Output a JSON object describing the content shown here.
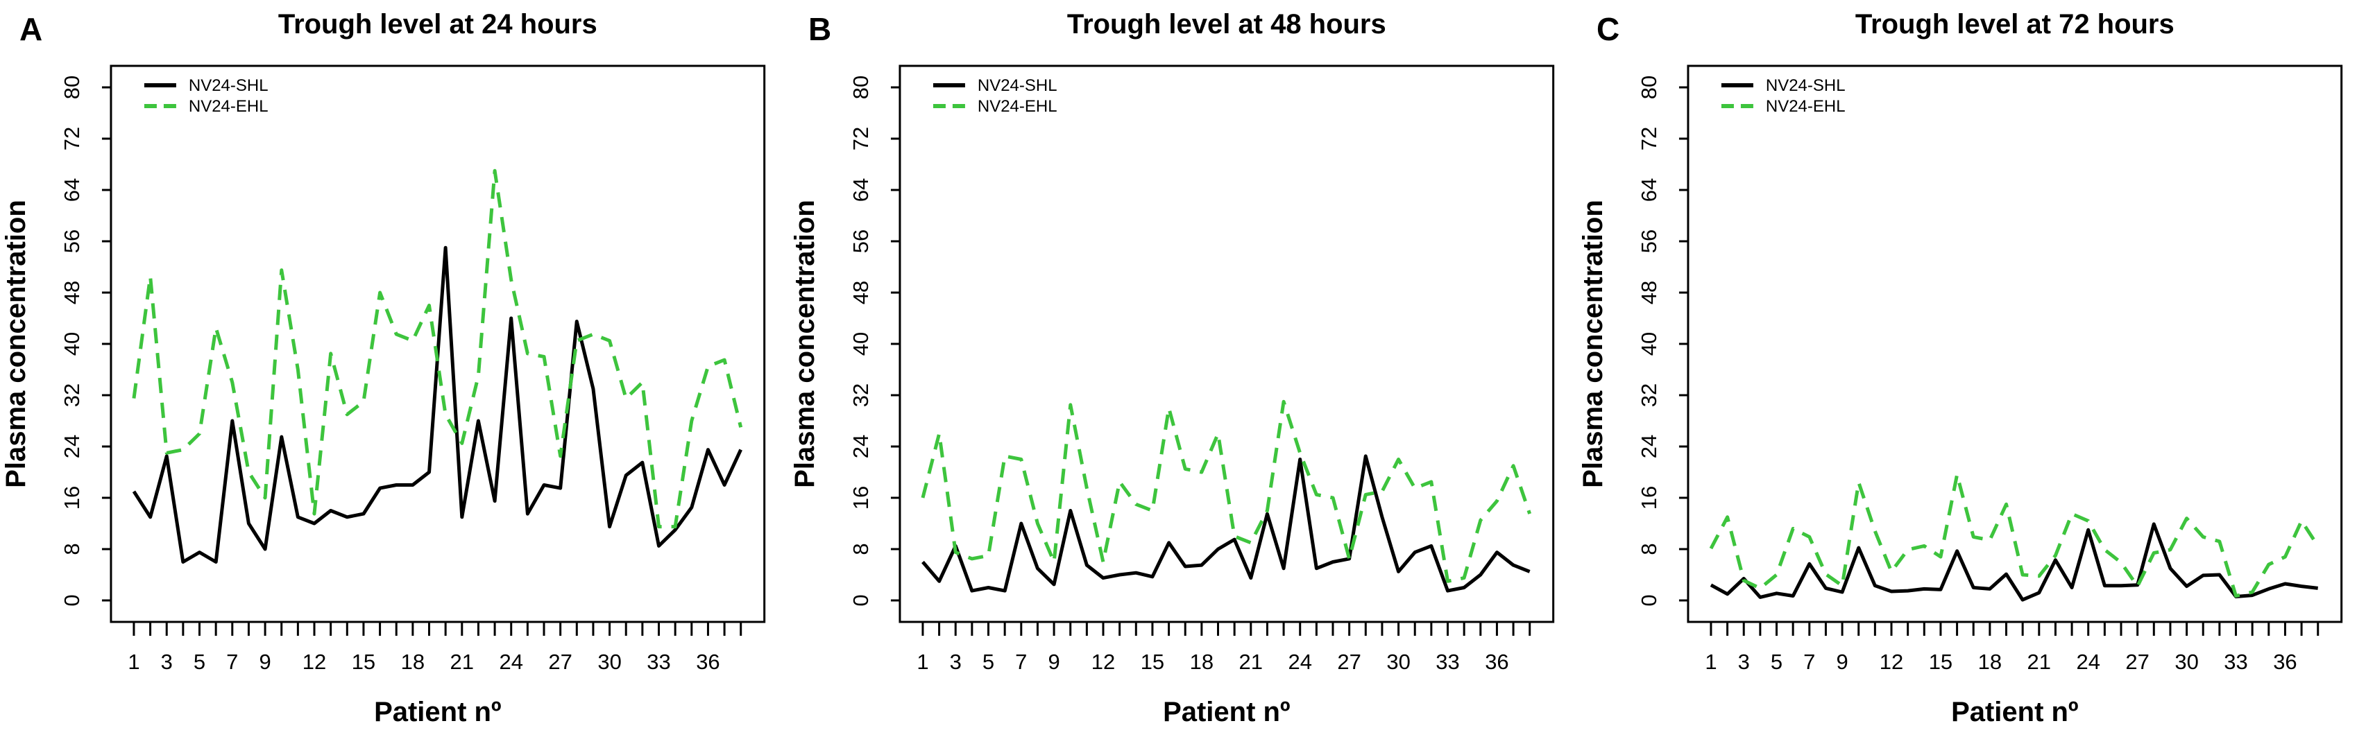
{
  "figure": {
    "background": "#ffffff",
    "frame_color": "#000000",
    "accent_green": "#3dc43d",
    "series_black": "#000000"
  },
  "chart_data": [
    {
      "type": "line",
      "panel_label": "A",
      "title": "Trough level at 24 hours",
      "xlabel": "Patient nº",
      "ylabel": "Plasma concentration",
      "x": [
        1,
        2,
        3,
        4,
        5,
        6,
        7,
        8,
        9,
        10,
        11,
        12,
        13,
        14,
        15,
        16,
        17,
        18,
        19,
        20,
        21,
        22,
        23,
        24,
        25,
        26,
        27,
        28,
        29,
        30,
        31,
        32,
        33,
        34,
        35,
        36,
        37,
        38
      ],
      "xtick_labels": [
        1,
        3,
        5,
        7,
        9,
        12,
        15,
        18,
        21,
        24,
        27,
        30,
        33,
        36
      ],
      "yticks": [
        0,
        8,
        16,
        24,
        32,
        40,
        48,
        56,
        64,
        72,
        80
      ],
      "ylim": [
        0,
        80
      ],
      "grid": false,
      "legend_position": "top-left",
      "series": [
        {
          "name": "NV24-SHL",
          "color": "#000000",
          "style": "solid",
          "values": [
            17,
            13,
            22.5,
            6,
            7.5,
            6,
            28,
            12,
            8,
            25.5,
            13,
            12,
            14,
            13,
            13.5,
            17.5,
            18,
            18,
            20,
            55,
            13,
            28,
            15.5,
            44,
            13.5,
            18,
            17.5,
            43.5,
            33,
            11.5,
            19.5,
            21.5,
            8.5,
            11,
            14.5,
            23.5,
            18,
            23.5
          ]
        },
        {
          "name": "NV24-EHL",
          "color": "#3dc43d",
          "style": "dashed",
          "values": [
            31.5,
            50.5,
            23,
            23.5,
            26,
            42.5,
            34,
            20,
            16,
            51.5,
            36,
            13.5,
            38.5,
            29,
            31,
            48,
            41.5,
            40.5,
            46,
            29,
            24.5,
            35,
            67,
            50,
            38.5,
            38,
            22.5,
            40.5,
            41.5,
            40.5,
            31.5,
            34,
            11.5,
            11.5,
            28,
            36.5,
            37.5,
            27
          ]
        }
      ]
    },
    {
      "type": "line",
      "panel_label": "B",
      "title": "Trough level at 48 hours",
      "xlabel": "Patient nº",
      "ylabel": "Plasma concentration",
      "x": [
        1,
        2,
        3,
        4,
        5,
        6,
        7,
        8,
        9,
        10,
        11,
        12,
        13,
        14,
        15,
        16,
        17,
        18,
        19,
        20,
        21,
        22,
        23,
        24,
        25,
        26,
        27,
        28,
        29,
        30,
        31,
        32,
        33,
        34,
        35,
        36,
        37,
        38
      ],
      "xtick_labels": [
        1,
        3,
        5,
        7,
        9,
        12,
        15,
        18,
        21,
        24,
        27,
        30,
        33,
        36
      ],
      "yticks": [
        0,
        8,
        16,
        24,
        32,
        40,
        48,
        56,
        64,
        72,
        80
      ],
      "ylim": [
        0,
        80
      ],
      "grid": false,
      "legend_position": "top-left",
      "series": [
        {
          "name": "NV24-SHL",
          "color": "#000000",
          "style": "solid",
          "values": [
            6,
            3,
            8.5,
            1.5,
            2,
            1.5,
            12,
            5,
            2.5,
            14,
            5.5,
            3.5,
            4,
            4.3,
            3.7,
            9,
            5.3,
            5.5,
            8,
            9.5,
            3.5,
            13.5,
            5,
            22,
            5,
            6,
            6.5,
            22.5,
            13,
            4.5,
            7.5,
            8.5,
            1.5,
            2,
            4,
            7.5,
            5.5,
            4.5
          ]
        },
        {
          "name": "NV24-EHL",
          "color": "#3dc43d",
          "style": "dashed",
          "values": [
            16,
            26,
            7.5,
            6.5,
            7,
            22.5,
            22,
            12,
            6,
            30.5,
            17.5,
            6,
            18.5,
            15,
            14,
            30,
            20.5,
            20,
            26,
            10,
            9,
            14,
            31,
            23,
            16.5,
            16,
            6.5,
            16.5,
            17,
            22,
            17.5,
            18.5,
            3,
            3.5,
            12.5,
            15.5,
            21,
            13.5
          ]
        }
      ]
    },
    {
      "type": "line",
      "panel_label": "C",
      "title": "Trough level at 72 hours",
      "xlabel": "Patient nº",
      "ylabel": "Plasma concentration",
      "x": [
        1,
        2,
        3,
        4,
        5,
        6,
        7,
        8,
        9,
        10,
        11,
        12,
        13,
        14,
        15,
        16,
        17,
        18,
        19,
        20,
        21,
        22,
        23,
        24,
        25,
        26,
        27,
        28,
        29,
        30,
        31,
        32,
        33,
        34,
        35,
        36,
        37,
        38
      ],
      "xtick_labels": [
        1,
        3,
        5,
        7,
        9,
        12,
        15,
        18,
        21,
        24,
        27,
        30,
        33,
        36
      ],
      "yticks": [
        0,
        8,
        16,
        24,
        32,
        40,
        48,
        56,
        64,
        72,
        80
      ],
      "ylim": [
        0,
        80
      ],
      "grid": false,
      "legend_position": "top-left",
      "series": [
        {
          "name": "NV24-SHL",
          "color": "#000000",
          "style": "solid",
          "values": [
            2.4,
            1,
            3.4,
            0.5,
            1.1,
            0.7,
            5.7,
            1.9,
            1.3,
            8.2,
            2.3,
            1.4,
            1.5,
            1.8,
            1.7,
            7.7,
            2,
            1.8,
            4.1,
            0.1,
            1.2,
            6.3,
            2,
            11,
            2.3,
            2.3,
            2.4,
            11.9,
            5,
            2.2,
            3.9,
            4,
            0.6,
            0.8,
            1.8,
            2.6,
            2.2,
            1.9
          ]
        },
        {
          "name": "NV24-EHL",
          "color": "#3dc43d",
          "style": "dashed",
          "values": [
            8.1,
            13,
            3.1,
            1.9,
            4,
            11.2,
            9.9,
            4.1,
            2.3,
            18.4,
            10.8,
            4.5,
            7.9,
            8.5,
            6.8,
            19.6,
            9.9,
            9.4,
            15,
            4,
            3.8,
            7,
            13.5,
            12.4,
            7.9,
            5.9,
            2.2,
            7.4,
            7.9,
            12.8,
            9.9,
            9.2,
            0.7,
            1.3,
            5.6,
            6.8,
            12.4,
            8.5
          ]
        }
      ]
    }
  ]
}
